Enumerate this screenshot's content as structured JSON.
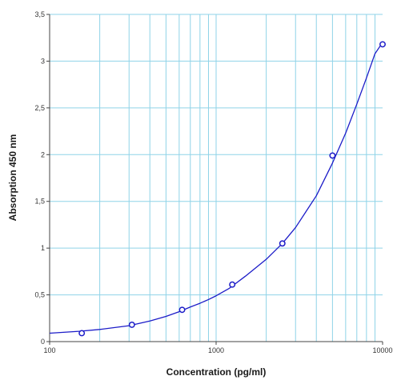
{
  "chart_data": {
    "type": "scatter",
    "title": "",
    "xlabel": "Concentration (pg/ml)",
    "ylabel": "Absorption 450 nm",
    "x_scale": "log",
    "xlim": [
      100,
      10000
    ],
    "ylim": [
      0,
      3.5
    ],
    "x_tick_labels": [
      "100",
      "1000",
      "10000"
    ],
    "y_tick_labels": [
      "0",
      "0,5",
      "1",
      "1,5",
      "2",
      "2,5",
      "3",
      "3,5"
    ],
    "grid": true,
    "legend": "none",
    "series": [
      {
        "marker": "circle",
        "x": [
          156,
          312,
          625,
          1250,
          2500,
          5000,
          10000
        ],
        "y": [
          0.09,
          0.18,
          0.34,
          0.61,
          1.05,
          1.99,
          3.18
        ]
      }
    ],
    "fit_curve": {
      "x": [
        100,
        150,
        200,
        300,
        400,
        500,
        600,
        700,
        800,
        900,
        1000,
        1200,
        1500,
        2000,
        2500,
        3000,
        4000,
        5000,
        6000,
        7000,
        8000,
        9000,
        10000
      ],
      "y": [
        0.09,
        0.11,
        0.13,
        0.17,
        0.22,
        0.27,
        0.32,
        0.37,
        0.41,
        0.45,
        0.49,
        0.57,
        0.7,
        0.88,
        1.05,
        1.22,
        1.56,
        1.91,
        2.23,
        2.54,
        2.82,
        3.08,
        3.2
      ]
    },
    "colors": {
      "grid": "#8fd3e8",
      "axis": "#444444",
      "series": "#1c1cc8"
    }
  }
}
